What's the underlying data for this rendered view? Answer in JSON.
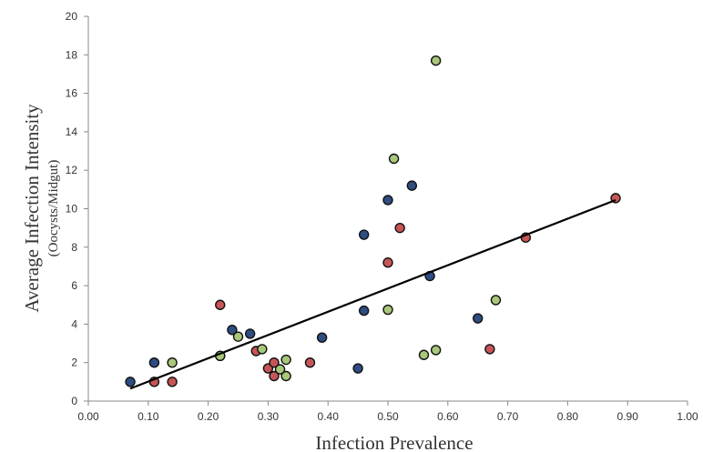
{
  "chart_data": {
    "type": "scatter",
    "xlabel": "Infection Prevalence",
    "ylabel": "Average Infection Intensity",
    "ylabel_sub": "(Oocysts/Midgut)",
    "xlim": [
      0,
      1
    ],
    "ylim": [
      0,
      20
    ],
    "x_ticks": [
      "0.00",
      "0.10",
      "0.20",
      "0.30",
      "0.40",
      "0.50",
      "0.60",
      "0.70",
      "0.80",
      "0.90",
      "1.00"
    ],
    "y_ticks": [
      "0",
      "2",
      "4",
      "6",
      "8",
      "10",
      "12",
      "14",
      "16",
      "18",
      "20"
    ],
    "grid": false,
    "legend": "none",
    "series": [
      {
        "color": "#2f4d82",
        "points": [
          [
            0.07,
            1.0
          ],
          [
            0.11,
            2.0
          ],
          [
            0.22,
            2.35
          ],
          [
            0.24,
            3.7
          ],
          [
            0.27,
            3.5
          ],
          [
            0.39,
            3.3
          ],
          [
            0.45,
            1.7
          ],
          [
            0.46,
            4.7
          ],
          [
            0.46,
            8.65
          ],
          [
            0.5,
            10.45
          ],
          [
            0.54,
            11.2
          ],
          [
            0.57,
            6.5
          ],
          [
            0.65,
            4.3
          ]
        ]
      },
      {
        "color": "#c65557",
        "points": [
          [
            0.11,
            1.0
          ],
          [
            0.14,
            1.0
          ],
          [
            0.22,
            5.0
          ],
          [
            0.28,
            2.6
          ],
          [
            0.3,
            1.7
          ],
          [
            0.31,
            2.0
          ],
          [
            0.31,
            1.3
          ],
          [
            0.37,
            2.0
          ],
          [
            0.5,
            7.2
          ],
          [
            0.52,
            9.0
          ],
          [
            0.67,
            2.7
          ],
          [
            0.73,
            8.5
          ],
          [
            0.88,
            10.55
          ]
        ]
      },
      {
        "color": "#a8c77a",
        "points": [
          [
            0.14,
            2.0
          ],
          [
            0.22,
            2.35
          ],
          [
            0.25,
            3.35
          ],
          [
            0.29,
            2.7
          ],
          [
            0.32,
            1.65
          ],
          [
            0.33,
            2.15
          ],
          [
            0.33,
            1.3
          ],
          [
            0.5,
            4.75
          ],
          [
            0.51,
            12.6
          ],
          [
            0.56,
            2.4
          ],
          [
            0.58,
            2.65
          ],
          [
            0.58,
            17.7
          ],
          [
            0.68,
            5.25
          ]
        ]
      }
    ],
    "trendline": {
      "x": [
        0.07,
        0.88
      ],
      "y": [
        0.65,
        10.45
      ],
      "color": "#000000"
    }
  }
}
